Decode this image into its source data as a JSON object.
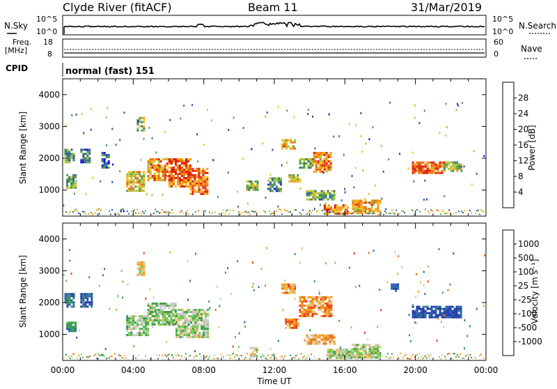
{
  "header": {
    "title": "Clyde River (fitACF)",
    "beam": "Beam 11",
    "date": "31/Mar/2019"
  },
  "top_panels": {
    "nsky_label": "N.Sky",
    "nsearch_label": "N.Search",
    "freq_label_1": "Freq.",
    "freq_label_2": "[MHz]",
    "nave_label": "Nave",
    "cpid_label": "CPID",
    "cpid_value": "normal (fast) 151",
    "noise_left_top": "10^5",
    "noise_left_bottom": "10^0",
    "noise_right_top": "10^5",
    "noise_right_bottom": "10^0",
    "freq_left_top": "18",
    "freq_left_bottom": "8",
    "nave_right_top": "60",
    "nave_right_bottom": "0"
  },
  "axes": {
    "xlabel": "Time UT",
    "ylabel_power": "Slant Range [km]",
    "ylabel_velocity": "Slant Range [km]",
    "xticks": [
      "00:00",
      "04:00",
      "08:00",
      "12:00",
      "16:00",
      "20:00",
      "00:00"
    ],
    "yticks": [
      "1000",
      "2000",
      "3000",
      "4000"
    ]
  },
  "colorbars": {
    "power_label": "Power [dB]",
    "power_ticks": [
      "4",
      "8",
      "12",
      "16",
      "20",
      "24",
      "28"
    ],
    "power_colors": [
      "#1010e0",
      "#2a4fa8",
      "#3d7a6e",
      "#4fa04a",
      "#a8c83c",
      "#f0c020",
      "#f59a18",
      "#f06a10",
      "#e02010"
    ],
    "velocity_label": "Velocity  [m s⁻¹]",
    "velocity_ticks": [
      "1000",
      "500",
      "100",
      "25",
      "-25",
      "-100",
      "-500",
      "-1000"
    ],
    "velocity_colors": [
      "#1f3aa8",
      "#2a5fb0",
      "#2f8a6a",
      "#3aa040",
      "#70c84a",
      "#c8c8c8",
      "#e8c070",
      "#f0a020",
      "#f07010",
      "#e84010",
      "#e01010"
    ]
  },
  "chart_data": [
    {
      "type": "heatmap",
      "title": "",
      "quantity": "Power [dB]",
      "xlabel": "Time UT",
      "ylabel": "Slant Range [km]",
      "xlim_hours": [
        0,
        24
      ],
      "ylim_km": [
        180,
        4500
      ],
      "clim": [
        0,
        30
      ],
      "patches": [
        {
          "t0": 0.2,
          "t1": 0.7,
          "r0": 1100,
          "r1": 1500,
          "val": 12
        },
        {
          "t0": 0.1,
          "t1": 0.6,
          "r0": 1900,
          "r1": 2300,
          "val": 10
        },
        {
          "t0": 1.0,
          "t1": 1.5,
          "r0": 1900,
          "r1": 2300,
          "val": 8
        },
        {
          "t0": 2.2,
          "t1": 2.6,
          "r0": 1700,
          "r1": 2200,
          "val": 7
        },
        {
          "t0": 3.6,
          "t1": 4.6,
          "r0": 1000,
          "r1": 1600,
          "val": 18
        },
        {
          "t0": 4.8,
          "t1": 6.0,
          "r0": 1300,
          "r1": 2000,
          "val": 22
        },
        {
          "t0": 6.0,
          "t1": 7.2,
          "r0": 1100,
          "r1": 2000,
          "val": 26
        },
        {
          "t0": 7.2,
          "t1": 8.2,
          "r0": 900,
          "r1": 1700,
          "val": 24
        },
        {
          "t0": 4.2,
          "t1": 4.6,
          "r0": 2900,
          "r1": 3300,
          "val": 14
        },
        {
          "t0": 11.6,
          "t1": 12.4,
          "r0": 1000,
          "r1": 1400,
          "val": 10
        },
        {
          "t0": 10.4,
          "t1": 11.0,
          "r0": 1000,
          "r1": 1300,
          "val": 14
        },
        {
          "t0": 12.4,
          "t1": 13.2,
          "r0": 2300,
          "r1": 2600,
          "val": 20
        },
        {
          "t0": 13.4,
          "t1": 14.2,
          "r0": 1700,
          "r1": 2000,
          "val": 14
        },
        {
          "t0": 14.2,
          "t1": 15.2,
          "r0": 1600,
          "r1": 2200,
          "val": 22
        },
        {
          "t0": 13.8,
          "t1": 15.4,
          "r0": 700,
          "r1": 1000,
          "val": 12
        },
        {
          "t0": 14.8,
          "t1": 16.2,
          "r0": 250,
          "r1": 550,
          "val": 24
        },
        {
          "t0": 16.4,
          "t1": 18.0,
          "r0": 300,
          "r1": 700,
          "val": 20
        },
        {
          "t0": 19.8,
          "t1": 21.6,
          "r0": 1550,
          "r1": 1900,
          "val": 26
        },
        {
          "t0": 21.6,
          "t1": 22.6,
          "r0": 1600,
          "r1": 1900,
          "val": 14
        },
        {
          "t0": 12.8,
          "t1": 13.4,
          "r0": 1300,
          "r1": 1500,
          "val": 16
        }
      ]
    },
    {
      "type": "heatmap",
      "title": "",
      "quantity": "Velocity [m s-1]",
      "xlabel": "Time UT",
      "ylabel": "Slant Range [km]",
      "xlim_hours": [
        0,
        24
      ],
      "ylim_km": [
        180,
        4500
      ],
      "clim": [
        -1000,
        1000
      ],
      "patches": [
        {
          "t0": 0.1,
          "t1": 0.6,
          "r0": 1900,
          "r1": 2300,
          "val": 700
        },
        {
          "t0": 0.2,
          "t1": 0.7,
          "r0": 1100,
          "r1": 1400,
          "val": 500
        },
        {
          "t0": 1.0,
          "t1": 1.6,
          "r0": 1900,
          "r1": 2300,
          "val": 800
        },
        {
          "t0": 3.6,
          "t1": 4.8,
          "r0": 1000,
          "r1": 1600,
          "val": 200
        },
        {
          "t0": 4.8,
          "t1": 6.4,
          "r0": 1300,
          "r1": 2000,
          "val": 150
        },
        {
          "t0": 6.4,
          "t1": 8.2,
          "r0": 900,
          "r1": 1800,
          "val": 100
        },
        {
          "t0": 4.2,
          "t1": 4.6,
          "r0": 2900,
          "r1": 3300,
          "val": -150
        },
        {
          "t0": 12.4,
          "t1": 13.2,
          "r0": 2300,
          "r1": 2600,
          "val": -400
        },
        {
          "t0": 13.4,
          "t1": 15.2,
          "r0": 1600,
          "r1": 2200,
          "val": -450
        },
        {
          "t0": 12.6,
          "t1": 13.4,
          "r0": 1200,
          "r1": 1500,
          "val": -500
        },
        {
          "t0": 13.8,
          "t1": 15.4,
          "r0": 700,
          "r1": 1000,
          "val": -300
        },
        {
          "t0": 15.0,
          "t1": 16.4,
          "r0": 250,
          "r1": 550,
          "val": 60
        },
        {
          "t0": 16.4,
          "t1": 18.0,
          "r0": 300,
          "r1": 700,
          "val": 40
        },
        {
          "t0": 19.8,
          "t1": 22.6,
          "r0": 1550,
          "r1": 1900,
          "val": 900
        },
        {
          "t0": 18.6,
          "t1": 19.0,
          "r0": 2400,
          "r1": 2600,
          "val": 900
        },
        {
          "t0": 10.6,
          "t1": 11.0,
          "r0": 300,
          "r1": 600,
          "val": 30
        }
      ]
    }
  ]
}
